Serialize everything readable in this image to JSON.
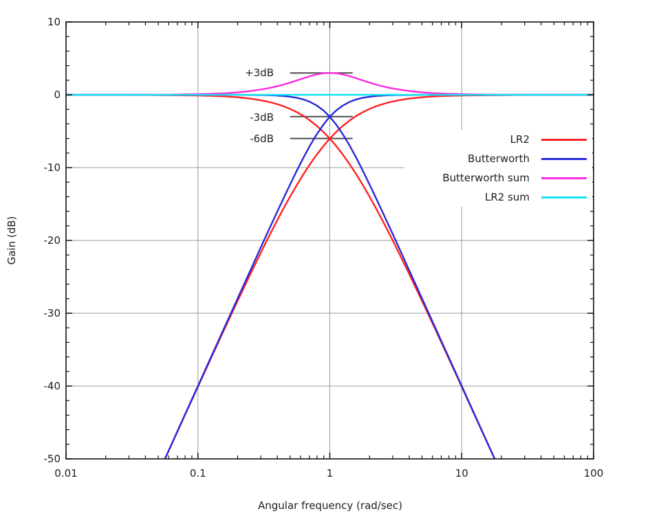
{
  "figure": {
    "background": "#ffffff",
    "text_color": "#202020"
  },
  "axes": {
    "x": {
      "label": "Angular frequency (rad/sec)",
      "scale": "log",
      "min": 0.01,
      "max": 100,
      "tick_values": [
        0.01,
        0.1,
        1,
        10,
        100
      ],
      "tick_labels": [
        "0.01",
        "0.1",
        "1",
        "10",
        "100"
      ]
    },
    "y": {
      "label": "Gain (dB)",
      "scale": "linear",
      "min": -50,
      "max": 10,
      "major_step": 10,
      "minor_step": 2,
      "tick_values": [
        10,
        0,
        -10,
        -20,
        -30,
        -40,
        -50
      ],
      "tick_labels": [
        "10",
        "0",
        "-10",
        "-20",
        "-30",
        "-40",
        "-50"
      ]
    }
  },
  "grid": {
    "x_values": [
      0.1,
      1,
      10
    ],
    "y_values": [
      0,
      -10,
      -20,
      -30,
      -40
    ],
    "color": "#9a9a9a"
  },
  "annotations": [
    {
      "label": "+3dB",
      "db": 3,
      "x_from": 0.5,
      "x_to": 1.49
    },
    {
      "label": "-3dB",
      "db": -3,
      "x_from": 0.5,
      "x_to": 1.49
    },
    {
      "label": "-6dB",
      "db": -6,
      "x_from": 0.5,
      "x_to": 1.49
    }
  ],
  "annotation_line_color": "#4d4d4d",
  "legend": {
    "position": "inside-right",
    "items": [
      {
        "label": "LR2",
        "color": "#ff2020"
      },
      {
        "label": "Butterworth",
        "color": "#2828dc"
      },
      {
        "label": "Butterworth sum",
        "color": "#ff28e0"
      },
      {
        "label": "LR2 sum",
        "color": "#14e4f4"
      }
    ]
  },
  "chart_data": {
    "type": "line",
    "title": "",
    "xlabel": "Angular frequency (rad/sec)",
    "ylabel": "Gain (dB)",
    "xscale": "log",
    "xlim": [
      0.01,
      100
    ],
    "ylim": [
      -50,
      10
    ],
    "grid": true,
    "series": [
      {
        "id": "lr2-lowpass",
        "name": "LR2 low-pass",
        "legend": "LR2",
        "color": "#ff2020",
        "points": [
          [
            0.01,
            0
          ],
          [
            0.0316,
            -0.01
          ],
          [
            0.1,
            -0.09
          ],
          [
            0.1259,
            -0.14
          ],
          [
            0.1585,
            -0.22
          ],
          [
            0.1995,
            -0.34
          ],
          [
            0.2512,
            -0.53
          ],
          [
            0.3162,
            -0.83
          ],
          [
            0.3548,
            -1.03
          ],
          [
            0.3981,
            -1.28
          ],
          [
            0.4467,
            -1.58
          ],
          [
            0.5012,
            -1.95
          ],
          [
            0.5623,
            -2.39
          ],
          [
            0.631,
            -2.91
          ],
          [
            0.7079,
            -3.53
          ],
          [
            0.7943,
            -4.25
          ],
          [
            0.8913,
            -5.08
          ],
          [
            1,
            -6.02
          ],
          [
            1.122,
            -7.08
          ],
          [
            1.259,
            -8.25
          ],
          [
            1.413,
            -9.53
          ],
          [
            1.585,
            -10.91
          ],
          [
            1.778,
            -12.39
          ],
          [
            1.995,
            -13.94
          ],
          [
            2.239,
            -15.58
          ],
          [
            2.512,
            -17.28
          ],
          [
            2.818,
            -19.03
          ],
          [
            3.162,
            -20.83
          ],
          [
            3.981,
            -24.53
          ],
          [
            5.012,
            -28.34
          ],
          [
            6.31,
            -32.22
          ],
          [
            7.943,
            -36.14
          ],
          [
            10,
            -40.09
          ],
          [
            12.59,
            -44.06
          ],
          [
            15.85,
            -48.03
          ],
          [
            19.95,
            -52.02
          ]
        ]
      },
      {
        "id": "lr2-highpass",
        "name": "LR2 high-pass",
        "legend": "LR2",
        "color": "#ff2020",
        "points": [
          [
            0.0501,
            -52.02
          ],
          [
            0.0631,
            -48.03
          ],
          [
            0.0794,
            -44.06
          ],
          [
            0.1,
            -40.09
          ],
          [
            0.1259,
            -36.14
          ],
          [
            0.1585,
            -32.22
          ],
          [
            0.1995,
            -28.34
          ],
          [
            0.2512,
            -24.53
          ],
          [
            0.3162,
            -20.83
          ],
          [
            0.3548,
            -19.03
          ],
          [
            0.3981,
            -17.28
          ],
          [
            0.4467,
            -15.58
          ],
          [
            0.5012,
            -13.94
          ],
          [
            0.5623,
            -12.39
          ],
          [
            0.631,
            -10.91
          ],
          [
            0.7079,
            -9.53
          ],
          [
            0.7943,
            -8.25
          ],
          [
            0.8913,
            -7.08
          ],
          [
            1,
            -6.02
          ],
          [
            1.122,
            -5.08
          ],
          [
            1.259,
            -4.25
          ],
          [
            1.413,
            -3.53
          ],
          [
            1.585,
            -2.91
          ],
          [
            1.778,
            -2.39
          ],
          [
            1.995,
            -1.95
          ],
          [
            2.239,
            -1.58
          ],
          [
            2.512,
            -1.28
          ],
          [
            2.818,
            -1.03
          ],
          [
            3.162,
            -0.83
          ],
          [
            3.981,
            -0.53
          ],
          [
            5.012,
            -0.34
          ],
          [
            6.31,
            -0.22
          ],
          [
            7.943,
            -0.14
          ],
          [
            10,
            -0.09
          ],
          [
            31.62,
            -0.01
          ],
          [
            100,
            0
          ]
        ]
      },
      {
        "id": "butterworth-lowpass",
        "name": "Butterworth low-pass",
        "legend": "Butterworth",
        "color": "#2828dc",
        "points": [
          [
            0.01,
            0
          ],
          [
            0.1,
            0
          ],
          [
            0.1995,
            -0.01
          ],
          [
            0.2512,
            -0.03
          ],
          [
            0.3162,
            -0.04
          ],
          [
            0.3548,
            -0.07
          ],
          [
            0.3981,
            -0.11
          ],
          [
            0.4467,
            -0.17
          ],
          [
            0.5012,
            -0.27
          ],
          [
            0.5623,
            -0.41
          ],
          [
            0.631,
            -0.64
          ],
          [
            0.7079,
            -0.97
          ],
          [
            0.7943,
            -1.46
          ],
          [
            0.8913,
            -2.12
          ],
          [
            1,
            -3.01
          ],
          [
            1.122,
            -4.13
          ],
          [
            1.259,
            -5.46
          ],
          [
            1.413,
            -6.97
          ],
          [
            1.585,
            -8.64
          ],
          [
            1.778,
            -10.41
          ],
          [
            1.995,
            -12.27
          ],
          [
            2.239,
            -14.17
          ],
          [
            2.512,
            -16.11
          ],
          [
            2.818,
            -18.07
          ],
          [
            3.162,
            -20.04
          ],
          [
            3.981,
            -24.02
          ],
          [
            5.012,
            -28.01
          ],
          [
            6.31,
            -32.0
          ],
          [
            7.943,
            -36.0
          ],
          [
            10,
            -40.0
          ],
          [
            12.59,
            -44.0
          ],
          [
            15.85,
            -48.0
          ],
          [
            19.95,
            -52.0
          ]
        ]
      },
      {
        "id": "butterworth-highpass",
        "name": "Butterworth high-pass",
        "legend": "Butterworth",
        "color": "#2828dc",
        "points": [
          [
            0.0501,
            -52.0
          ],
          [
            0.0631,
            -48.0
          ],
          [
            0.0794,
            -44.0
          ],
          [
            0.1,
            -40.0
          ],
          [
            0.1259,
            -36.0
          ],
          [
            0.1585,
            -32.0
          ],
          [
            0.1995,
            -28.01
          ],
          [
            0.2512,
            -24.02
          ],
          [
            0.3162,
            -20.04
          ],
          [
            0.3548,
            -18.07
          ],
          [
            0.3981,
            -16.11
          ],
          [
            0.4467,
            -14.17
          ],
          [
            0.5012,
            -12.27
          ],
          [
            0.5623,
            -10.41
          ],
          [
            0.631,
            -8.64
          ],
          [
            0.7079,
            -6.97
          ],
          [
            0.7943,
            -5.46
          ],
          [
            0.8913,
            -4.13
          ],
          [
            1,
            -3.01
          ],
          [
            1.122,
            -2.12
          ],
          [
            1.259,
            -1.46
          ],
          [
            1.413,
            -0.97
          ],
          [
            1.585,
            -0.64
          ],
          [
            1.778,
            -0.41
          ],
          [
            1.995,
            -0.27
          ],
          [
            2.239,
            -0.17
          ],
          [
            2.512,
            -0.11
          ],
          [
            2.818,
            -0.07
          ],
          [
            3.162,
            -0.04
          ],
          [
            3.981,
            -0.03
          ],
          [
            5.012,
            -0.01
          ],
          [
            10,
            0
          ],
          [
            100,
            0
          ]
        ]
      },
      {
        "id": "butterworth-sum",
        "name": "Butterworth sum",
        "legend": "Butterworth sum",
        "color": "#ff28e0",
        "points": [
          [
            0.01,
            0
          ],
          [
            0.0316,
            0.01
          ],
          [
            0.0631,
            0.03
          ],
          [
            0.1,
            0.09
          ],
          [
            0.1259,
            0.14
          ],
          [
            0.1585,
            0.21
          ],
          [
            0.1995,
            0.33
          ],
          [
            0.2512,
            0.52
          ],
          [
            0.3162,
            0.79
          ],
          [
            0.3548,
            0.96
          ],
          [
            0.3981,
            1.17
          ],
          [
            0.4467,
            1.41
          ],
          [
            0.5012,
            1.68
          ],
          [
            0.5623,
            1.97
          ],
          [
            0.631,
            2.27
          ],
          [
            0.7079,
            2.56
          ],
          [
            0.7943,
            2.79
          ],
          [
            0.8913,
            2.95
          ],
          [
            1,
            3.01
          ],
          [
            1.122,
            2.95
          ],
          [
            1.259,
            2.79
          ],
          [
            1.413,
            2.56
          ],
          [
            1.585,
            2.27
          ],
          [
            1.778,
            1.97
          ],
          [
            1.995,
            1.68
          ],
          [
            2.239,
            1.41
          ],
          [
            2.512,
            1.17
          ],
          [
            2.818,
            0.96
          ],
          [
            3.162,
            0.79
          ],
          [
            3.981,
            0.52
          ],
          [
            5.012,
            0.33
          ],
          [
            6.31,
            0.21
          ],
          [
            7.943,
            0.14
          ],
          [
            10,
            0.09
          ],
          [
            15.85,
            0.03
          ],
          [
            31.62,
            0.01
          ],
          [
            100,
            0
          ]
        ]
      },
      {
        "id": "lr2-sum",
        "name": "LR2 sum",
        "legend": "LR2 sum",
        "color": "#14e4f4",
        "points": [
          [
            0.01,
            0
          ],
          [
            100,
            0
          ]
        ]
      }
    ]
  }
}
